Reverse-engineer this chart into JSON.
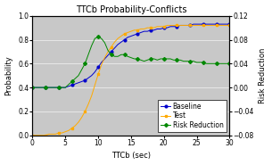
{
  "title": "TTCb Probability-Conflicts",
  "xlabel": "TTCb (sec)",
  "ylabel_left": "Probability",
  "ylabel_right": "Risk Reduction",
  "xlim": [
    0,
    30
  ],
  "ylim_left": [
    0.0,
    1.0
  ],
  "ylim_right": [
    -0.08,
    0.12
  ],
  "xticks": [
    0,
    5,
    10,
    15,
    20,
    25,
    30
  ],
  "yticks_left": [
    0.0,
    0.2,
    0.4,
    0.6,
    0.8,
    1.0
  ],
  "yticks_right": [
    -0.08,
    -0.04,
    0.0,
    0.04,
    0.08,
    0.12
  ],
  "fig_bg_color": "#ffffff",
  "plot_bg_color": "#c8c8c8",
  "legend_labels": [
    "Baseline",
    "Test",
    "Risk Reduction"
  ],
  "line_colors": [
    "#0000cc",
    "#ffaa00",
    "#008800"
  ],
  "marker_styles": [
    "o",
    "s",
    "D"
  ],
  "title_fontsize": 7,
  "axis_label_fontsize": 6,
  "tick_fontsize": 5.5,
  "legend_fontsize": 5.5,
  "baseline_x": [
    0,
    0.5,
    1,
    1.5,
    2,
    2.5,
    3,
    3.5,
    4,
    4.5,
    5,
    5.5,
    6,
    6.5,
    7,
    7.5,
    8,
    8.5,
    9,
    9.5,
    10,
    10.5,
    11,
    11.5,
    12,
    12.5,
    13,
    13.5,
    14,
    14.5,
    15,
    15.5,
    16,
    16.5,
    17,
    17.5,
    18,
    18.5,
    19,
    19.5,
    20,
    20.5,
    21,
    21.5,
    22,
    22.5,
    23,
    23.5,
    24,
    24.5,
    25,
    25.5,
    26,
    26.5,
    27,
    27.5,
    28,
    28.5,
    29,
    29.5,
    30
  ],
  "baseline_y": [
    0.4,
    0.4,
    0.4,
    0.4,
    0.4,
    0.4,
    0.4,
    0.4,
    0.4,
    0.4,
    0.4,
    0.41,
    0.42,
    0.43,
    0.44,
    0.45,
    0.46,
    0.48,
    0.5,
    0.53,
    0.57,
    0.61,
    0.64,
    0.67,
    0.7,
    0.73,
    0.76,
    0.78,
    0.8,
    0.82,
    0.83,
    0.84,
    0.85,
    0.86,
    0.87,
    0.87,
    0.88,
    0.88,
    0.89,
    0.89,
    0.9,
    0.9,
    0.91,
    0.91,
    0.91,
    0.92,
    0.92,
    0.92,
    0.92,
    0.93,
    0.93,
    0.93,
    0.93,
    0.93,
    0.93,
    0.93,
    0.93,
    0.93,
    0.93,
    0.93,
    0.93
  ],
  "test_x": [
    0,
    0.5,
    1,
    1.5,
    2,
    2.5,
    3,
    3.5,
    4,
    4.5,
    5,
    5.5,
    6,
    6.5,
    7,
    7.5,
    8,
    8.5,
    9,
    9.5,
    10,
    10.5,
    11,
    11.5,
    12,
    12.5,
    13,
    13.5,
    14,
    14.5,
    15,
    15.5,
    16,
    16.5,
    17,
    17.5,
    18,
    18.5,
    19,
    19.5,
    20,
    20.5,
    21,
    21.5,
    22,
    22.5,
    23,
    23.5,
    24,
    24.5,
    25,
    25.5,
    26,
    26.5,
    27,
    27.5,
    28,
    28.5,
    29,
    29.5,
    30
  ],
  "test_y": [
    0.0,
    0.0,
    0.0,
    0.0,
    0.0,
    0.01,
    0.01,
    0.01,
    0.02,
    0.02,
    0.03,
    0.04,
    0.06,
    0.08,
    0.11,
    0.15,
    0.2,
    0.26,
    0.33,
    0.42,
    0.51,
    0.59,
    0.65,
    0.7,
    0.74,
    0.78,
    0.81,
    0.83,
    0.85,
    0.86,
    0.87,
    0.88,
    0.88,
    0.89,
    0.89,
    0.9,
    0.9,
    0.9,
    0.91,
    0.91,
    0.91,
    0.92,
    0.92,
    0.92,
    0.92,
    0.92,
    0.92,
    0.92,
    0.92,
    0.92,
    0.92,
    0.92,
    0.92,
    0.92,
    0.92,
    0.92,
    0.92,
    0.92,
    0.92,
    0.92,
    0.92
  ],
  "rr_x": [
    0,
    0.5,
    1,
    1.5,
    2,
    2.5,
    3,
    3.5,
    4,
    4.5,
    5,
    5.5,
    6,
    6.5,
    7,
    7.5,
    8,
    8.5,
    9,
    9.5,
    10,
    10.5,
    11,
    11.5,
    12,
    12.5,
    13,
    13.5,
    14,
    14.5,
    15,
    15.5,
    16,
    16.5,
    17,
    17.5,
    18,
    18.5,
    19,
    19.5,
    20,
    20.5,
    21,
    21.5,
    22,
    22.5,
    23,
    23.5,
    24,
    24.5,
    25,
    25.5,
    26,
    26.5,
    27,
    27.5,
    28,
    28.5,
    29,
    29.5,
    30
  ],
  "rr_y": [
    0.0,
    0.0,
    0.0,
    0.0,
    0.0,
    0.0,
    0.0,
    0.0,
    0.0,
    0.0,
    0.0,
    0.005,
    0.01,
    0.015,
    0.02,
    0.03,
    0.04,
    0.055,
    0.07,
    0.082,
    0.085,
    0.082,
    0.075,
    0.062,
    0.055,
    0.052,
    0.052,
    0.055,
    0.055,
    0.052,
    0.05,
    0.048,
    0.048,
    0.046,
    0.044,
    0.046,
    0.048,
    0.048,
    0.046,
    0.048,
    0.048,
    0.048,
    0.048,
    0.046,
    0.046,
    0.046,
    0.044,
    0.044,
    0.044,
    0.044,
    0.042,
    0.042,
    0.042,
    0.04,
    0.04,
    0.04,
    0.04,
    0.04,
    0.04,
    0.04,
    0.04
  ]
}
